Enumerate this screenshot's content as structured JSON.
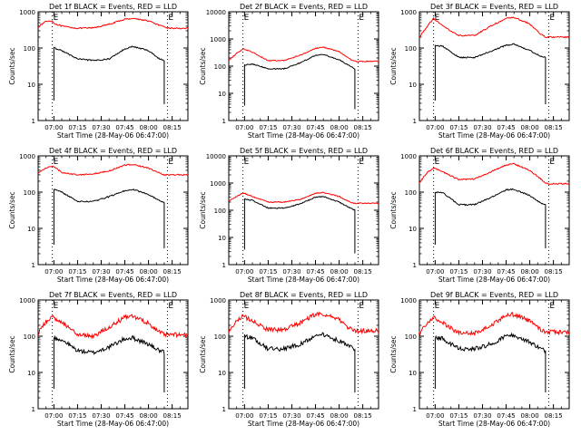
{
  "figure": {
    "tick_labels_x": [
      "07:00",
      "07:15",
      "07:30",
      "07:45",
      "08:00",
      "08:15"
    ],
    "tick_labels_y": [
      "1",
      "10",
      "100",
      "1000",
      "10000"
    ],
    "ylabel": "Counts/sec",
    "xlabel": "Start Time (28-May-06 06:47:00)",
    "marker_text": "E",
    "colors": {
      "events": "#000000",
      "lld": "#ff0000",
      "axes": "#000000",
      "background": "#ffffff"
    }
  },
  "chart_data": [
    {
      "type": "line",
      "title": "Det 1f BLACK = Events, RED = LLD",
      "xlabel": "Start Time (28-May-06 06:47:00)",
      "ylabel": "Counts/sec",
      "ylim": [
        1,
        1000
      ],
      "ylog": true,
      "x": [
        0,
        5,
        9,
        10,
        15,
        25,
        35,
        45,
        55,
        60,
        70,
        77,
        80,
        82,
        85,
        95
      ],
      "series": [
        {
          "name": "LLD",
          "color": "#ff0000",
          "values": [
            380,
            550,
            560,
            480,
            400,
            350,
            360,
            450,
            620,
            660,
            560,
            420,
            380,
            360,
            350,
            350
          ]
        },
        {
          "name": "Events",
          "color": "#000000",
          "values": [
            null,
            null,
            null,
            100,
            85,
            50,
            45,
            50,
            95,
            110,
            85,
            50,
            45,
            null,
            null,
            null
          ]
        }
      ],
      "markers": [
        {
          "label": "E",
          "x": 9
        },
        {
          "label": "E",
          "x": 82
        }
      ]
    },
    {
      "type": "line",
      "title": "Det 2f BLACK = Events, RED = LLD",
      "xlabel": "Start Time (28-May-06 06:47:00)",
      "ylabel": "Counts/sec",
      "ylim": [
        1,
        10000
      ],
      "ylog": true,
      "x": [
        0,
        5,
        9,
        10,
        15,
        25,
        35,
        45,
        55,
        60,
        70,
        77,
        80,
        82,
        85,
        95
      ],
      "series": [
        {
          "name": "LLD",
          "color": "#ff0000",
          "values": [
            160,
            300,
            420,
            420,
            330,
            160,
            160,
            250,
            450,
            500,
            340,
            180,
            150,
            150,
            150,
            150
          ]
        },
        {
          "name": "Events",
          "color": "#000000",
          "values": [
            null,
            null,
            null,
            110,
            120,
            80,
            80,
            130,
            250,
            270,
            170,
            100,
            80,
            null,
            null,
            null
          ]
        }
      ],
      "markers": [
        {
          "label": "E",
          "x": 9
        },
        {
          "label": "E",
          "x": 82
        }
      ]
    },
    {
      "type": "line",
      "title": "Det 3f BLACK = Events, RED = LLD",
      "xlabel": "Start Time (28-May-06 06:47:00)",
      "ylabel": "Counts/sec",
      "ylim": [
        1,
        1000
      ],
      "ylog": true,
      "x": [
        0,
        5,
        9,
        10,
        15,
        25,
        35,
        45,
        55,
        60,
        70,
        77,
        80,
        82,
        85,
        95
      ],
      "series": [
        {
          "name": "LLD",
          "color": "#ff0000",
          "values": [
            200,
            400,
            650,
            600,
            400,
            220,
            220,
            400,
            650,
            700,
            460,
            240,
            200,
            200,
            200,
            200
          ]
        },
        {
          "name": "Events",
          "color": "#000000",
          "values": [
            null,
            null,
            null,
            120,
            110,
            55,
            55,
            80,
            120,
            130,
            85,
            60,
            55,
            null,
            null,
            null
          ]
        }
      ],
      "markers": [
        {
          "label": "E",
          "x": 9
        },
        {
          "label": "E",
          "x": 82
        }
      ]
    },
    {
      "type": "line",
      "title": "Det 4f BLACK = Events, RED = LLD",
      "xlabel": "Start Time (28-May-06 06:47:00)",
      "ylabel": "Counts/sec",
      "ylim": [
        1,
        1000
      ],
      "ylog": true,
      "x": [
        0,
        5,
        9,
        10,
        15,
        25,
        35,
        45,
        55,
        60,
        70,
        77,
        80,
        82,
        85,
        95
      ],
      "series": [
        {
          "name": "LLD",
          "color": "#ff0000",
          "values": [
            330,
            470,
            530,
            500,
            350,
            300,
            320,
            380,
            560,
            580,
            460,
            330,
            300,
            300,
            300,
            300
          ]
        },
        {
          "name": "Events",
          "color": "#000000",
          "values": [
            null,
            null,
            null,
            120,
            100,
            55,
            55,
            75,
            110,
            120,
            85,
            60,
            50,
            null,
            null,
            null
          ]
        }
      ],
      "markers": [
        {
          "label": "E",
          "x": 9
        },
        {
          "label": "E",
          "x": 82
        }
      ]
    },
    {
      "type": "line",
      "title": "Det 5f BLACK = Events, RED = LLD",
      "xlabel": "Start Time (28-May-06 06:47:00)",
      "ylabel": "Counts/sec",
      "ylim": [
        1,
        10000
      ],
      "ylog": true,
      "x": [
        0,
        5,
        9,
        10,
        15,
        25,
        35,
        45,
        55,
        60,
        70,
        77,
        80,
        82,
        85,
        95
      ],
      "series": [
        {
          "name": "LLD",
          "color": "#ff0000",
          "values": [
            220,
            320,
            430,
            420,
            320,
            200,
            200,
            250,
            420,
            450,
            320,
            200,
            180,
            180,
            180,
            180
          ]
        },
        {
          "name": "Events",
          "color": "#000000",
          "values": [
            null,
            null,
            null,
            260,
            230,
            120,
            120,
            170,
            300,
            320,
            200,
            120,
            100,
            null,
            null,
            null
          ]
        }
      ],
      "markers": [
        {
          "label": "E",
          "x": 9
        },
        {
          "label": "E",
          "x": 82
        }
      ]
    },
    {
      "type": "line",
      "title": "Det 6f BLACK = Events, RED = LLD",
      "xlabel": "Start Time (28-May-06 06:47:00)",
      "ylabel": "Counts/sec",
      "ylim": [
        1,
        1000
      ],
      "ylog": true,
      "x": [
        0,
        5,
        9,
        10,
        15,
        25,
        35,
        45,
        55,
        60,
        70,
        77,
        80,
        82,
        85,
        95
      ],
      "series": [
        {
          "name": "LLD",
          "color": "#ff0000",
          "values": [
            180,
            350,
            450,
            450,
            360,
            220,
            230,
            360,
            560,
            600,
            400,
            230,
            180,
            170,
            170,
            170
          ]
        },
        {
          "name": "Events",
          "color": "#000000",
          "values": [
            null,
            null,
            null,
            100,
            95,
            45,
            45,
            70,
            115,
            120,
            80,
            50,
            45,
            null,
            null,
            null
          ]
        }
      ],
      "markers": [
        {
          "label": "E",
          "x": 9
        },
        {
          "label": "E",
          "x": 82
        }
      ]
    },
    {
      "type": "line",
      "title": "Det 7f BLACK = Events, RED = LLD",
      "xlabel": "Start Time (28-May-06 06:47:00)",
      "ylabel": "Counts/sec",
      "ylim": [
        1,
        1000
      ],
      "ylog": true,
      "x": [
        0,
        5,
        9,
        10,
        15,
        25,
        35,
        45,
        55,
        60,
        70,
        77,
        80,
        82,
        85,
        95
      ],
      "series": [
        {
          "name": "LLD",
          "color": "#ff0000",
          "values": [
            120,
            250,
            330,
            320,
            250,
            110,
            100,
            180,
            330,
            350,
            230,
            130,
            110,
            110,
            110,
            110
          ]
        },
        {
          "name": "Events",
          "color": "#000000",
          "values": [
            null,
            null,
            null,
            90,
            80,
            40,
            35,
            50,
            85,
            90,
            60,
            40,
            35,
            null,
            null,
            null
          ]
        }
      ],
      "markers": [
        {
          "label": "E",
          "x": 9
        },
        {
          "label": "E",
          "x": 82
        }
      ]
    },
    {
      "type": "line",
      "title": "Det 8f BLACK = Events, RED = LLD",
      "xlabel": "Start Time (28-May-06 06:47:00)",
      "ylabel": "Counts/sec",
      "ylim": [
        1,
        1000
      ],
      "ylog": true,
      "x": [
        0,
        5,
        9,
        10,
        15,
        25,
        35,
        45,
        55,
        60,
        70,
        77,
        80,
        82,
        85,
        95
      ],
      "series": [
        {
          "name": "LLD",
          "color": "#ff0000",
          "values": [
            140,
            260,
            350,
            340,
            270,
            150,
            150,
            230,
            400,
            420,
            280,
            160,
            140,
            140,
            140,
            140
          ]
        },
        {
          "name": "Events",
          "color": "#000000",
          "values": [
            null,
            null,
            null,
            100,
            90,
            45,
            45,
            60,
            100,
            110,
            75,
            50,
            45,
            null,
            null,
            null
          ]
        }
      ],
      "markers": [
        {
          "label": "E",
          "x": 9
        },
        {
          "label": "E",
          "x": 82
        }
      ]
    },
    {
      "type": "line",
      "title": "Det 9f BLACK = Events, RED = LLD",
      "xlabel": "Start Time (28-May-06 06:47:00)",
      "ylabel": "Counts/sec",
      "ylim": [
        1,
        1000
      ],
      "ylog": true,
      "x": [
        0,
        5,
        9,
        10,
        15,
        25,
        35,
        45,
        55,
        60,
        70,
        77,
        80,
        82,
        85,
        95
      ],
      "series": [
        {
          "name": "LLD",
          "color": "#ff0000",
          "values": [
            120,
            250,
            330,
            320,
            240,
            120,
            120,
            200,
            370,
            400,
            260,
            150,
            130,
            130,
            130,
            130
          ]
        },
        {
          "name": "Events",
          "color": "#000000",
          "values": [
            null,
            null,
            null,
            95,
            85,
            45,
            45,
            60,
            100,
            105,
            70,
            45,
            40,
            null,
            null,
            null
          ]
        }
      ],
      "markers": [
        {
          "label": "E",
          "x": 9
        },
        {
          "label": "E",
          "x": 82
        }
      ]
    }
  ]
}
